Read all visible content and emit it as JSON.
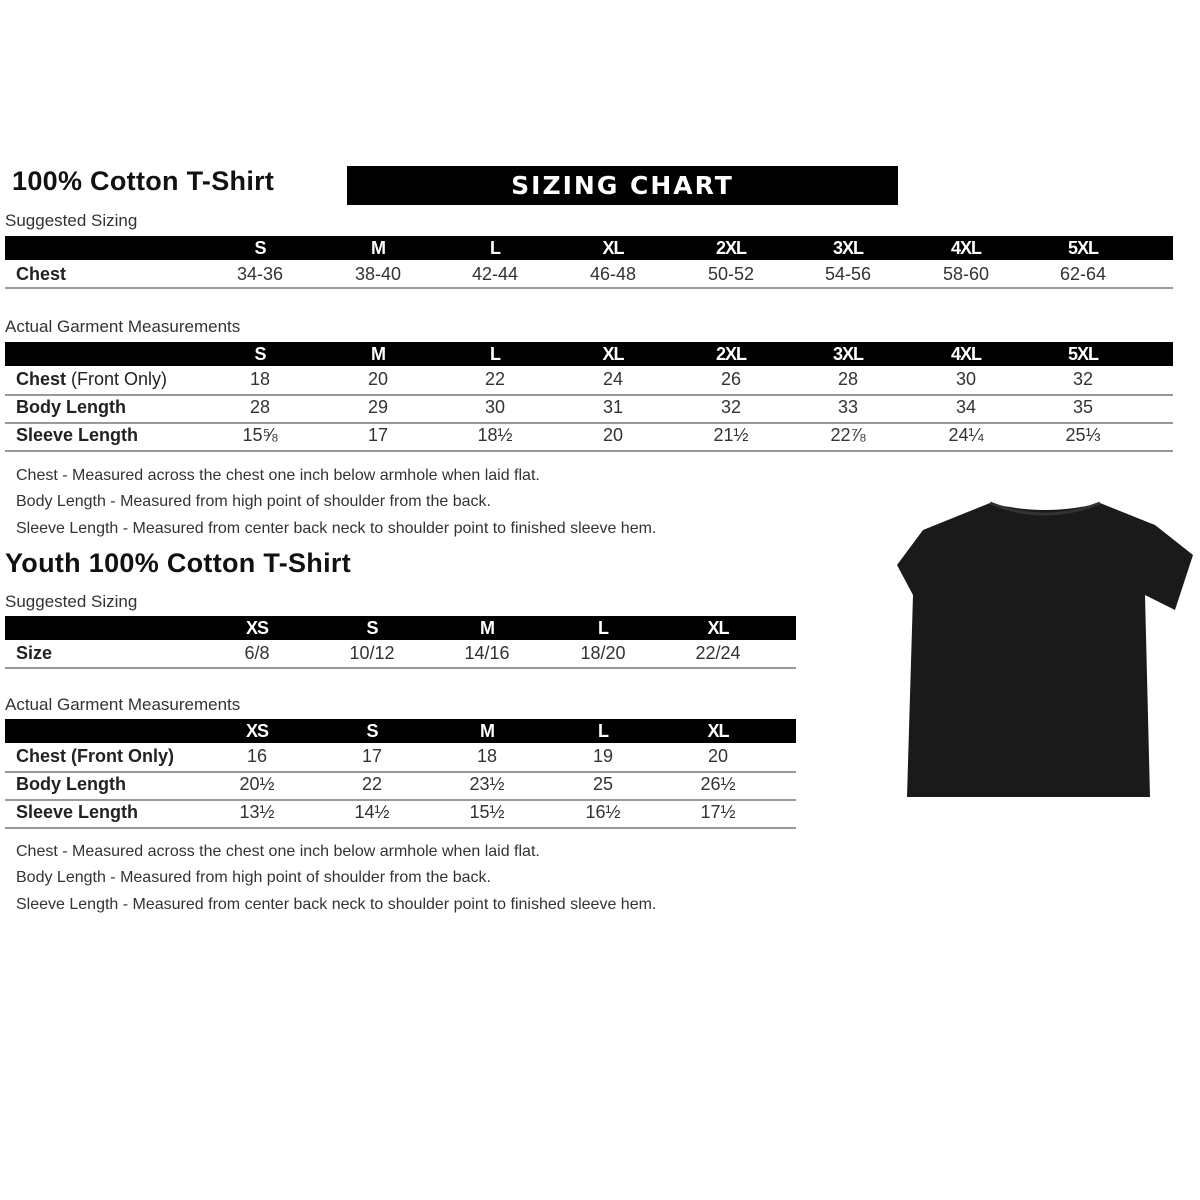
{
  "adult": {
    "title": "100% Cotton T-Shirt",
    "banner": "SIZING CHART",
    "suggested": {
      "label": "Suggested Sizing",
      "sizes": [
        "S",
        "M",
        "L",
        "XL",
        "2XL",
        "3XL",
        "4XL",
        "5XL"
      ],
      "rows": [
        {
          "label": "Chest",
          "values": [
            "34-36",
            "38-40",
            "42-44",
            "46-48",
            "50-52",
            "54-56",
            "58-60",
            "62-64"
          ]
        }
      ]
    },
    "actual": {
      "label": "Actual Garment Measurements",
      "sizes": [
        "S",
        "M",
        "L",
        "XL",
        "2XL",
        "3XL",
        "4XL",
        "5XL"
      ],
      "rows": [
        {
          "label": "Chest",
          "label_suffix": " (Front Only)",
          "values": [
            "18",
            "20",
            "22",
            "24",
            "26",
            "28",
            "30",
            "32"
          ]
        },
        {
          "label": "Body Length",
          "values": [
            "28",
            "29",
            "30",
            "31",
            "32",
            "33",
            "34",
            "35"
          ]
        },
        {
          "label": "Sleeve Length",
          "values": [
            "15⅝",
            "17",
            "18½",
            "20",
            "21½",
            "22⅞",
            "24¼",
            "25⅓"
          ]
        }
      ]
    },
    "notes": [
      "Chest - Measured across the chest one inch below armhole when laid flat.",
      "Body Length - Measured from high point of shoulder from the back.",
      "Sleeve Length - Measured from center back neck to shoulder point to finished sleeve hem."
    ]
  },
  "youth": {
    "title": "Youth 100% Cotton T-Shirt",
    "suggested": {
      "label": "Suggested Sizing",
      "sizes": [
        "XS",
        "S",
        "M",
        "L",
        "XL"
      ],
      "rows": [
        {
          "label": "Size",
          "values": [
            "6/8",
            "10/12",
            "14/16",
            "18/20",
            "22/24"
          ]
        }
      ]
    },
    "actual": {
      "label": "Actual Garment Measurements",
      "sizes": [
        "XS",
        "S",
        "M",
        "L",
        "XL"
      ],
      "rows": [
        {
          "label": "Chest (Front Only)",
          "values": [
            "16",
            "17",
            "18",
            "19",
            "20"
          ]
        },
        {
          "label": "Body Length",
          "values": [
            "20½",
            "22",
            "23½",
            "25",
            "26½"
          ]
        },
        {
          "label": "Sleeve Length",
          "values": [
            "13½",
            "14½",
            "15½",
            "16½",
            "17½"
          ]
        }
      ]
    },
    "notes": [
      "Chest - Measured across the chest one inch below armhole when laid flat.",
      "Body Length - Measured from high point of shoulder from the back.",
      "Sleeve Length - Measured from center back neck to shoulder point to finished sleeve hem."
    ]
  },
  "image": {
    "name": "black-tshirt",
    "color": "#1a1a1a"
  }
}
